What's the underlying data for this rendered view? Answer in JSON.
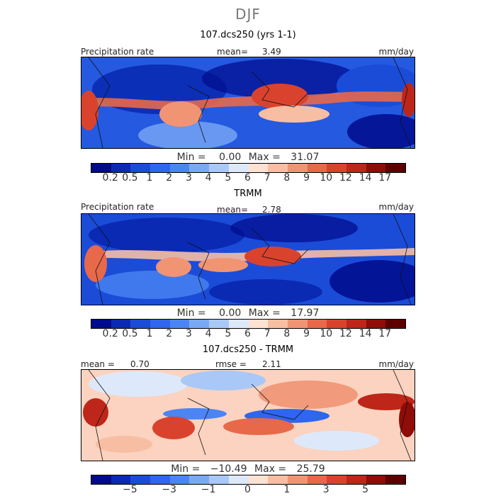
{
  "page": {
    "title": "DJF"
  },
  "panels": [
    {
      "title": "107.dcs250 (yrs 1-1)",
      "label_left": "Precipitation rate",
      "stat_label": "mean=",
      "stat_value": "3.49",
      "units": "mm/day",
      "min_label": "Min =",
      "min_value": "0.00",
      "max_label": "Max =",
      "max_value": "31.07"
    },
    {
      "title": "TRMM",
      "label_left": "Precipitation rate",
      "stat_label": "mean=",
      "stat_value": "2.78",
      "units": "mm/day",
      "min_label": "Min =",
      "min_value": "0.00",
      "max_label": "Max =",
      "max_value": "17.97"
    },
    {
      "title": "107.dcs250 - TRMM",
      "label_left": "mean =",
      "label_left_value": "0.70",
      "stat_label": "rmse =",
      "stat_value": "2.11",
      "units": "mm/day",
      "min_label": "Min =",
      "min_value": "−10.49",
      "max_label": "Max =",
      "max_value": "25.79"
    }
  ],
  "colorbars": {
    "precip_colors": [
      "#000a8c",
      "#0a2ab4",
      "#1b4cd8",
      "#2e66ee",
      "#4a85f3",
      "#79a8f5",
      "#a9c8f7",
      "#dde9fa",
      "#fde2d2",
      "#f8bea3",
      "#f19474",
      "#e8684a",
      "#d9432e",
      "#bd2618",
      "#8f0c08",
      "#5e0000"
    ],
    "precip_ticks": [
      "0.2",
      "0.5",
      "1",
      "2",
      "3",
      "4",
      "5",
      "6",
      "7",
      "8",
      "9",
      "10",
      "12",
      "14",
      "17"
    ],
    "diff_colors": [
      "#000a8c",
      "#0a2ab4",
      "#1b4cd8",
      "#2e66ee",
      "#4a85f3",
      "#79a8f5",
      "#a9c8f7",
      "#dde9fa",
      "#fde2d2",
      "#f8bea3",
      "#f19474",
      "#e8684a",
      "#d9432e",
      "#bd2618",
      "#8f0c08",
      "#5e0000"
    ],
    "diff_ticks": [
      "−5",
      "−3",
      "−1",
      "0",
      "1",
      "3",
      "5"
    ]
  }
}
